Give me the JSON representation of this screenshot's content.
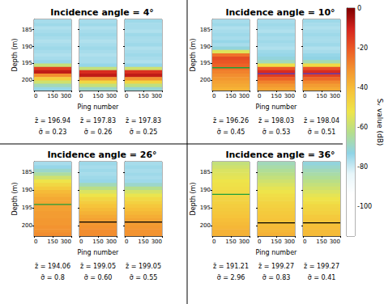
{
  "chart_data": [
    {
      "type": "heatmap",
      "title": "Incidence angle = 4°",
      "x_label": "Ping number",
      "y_label": "Depth (m)",
      "xlim": [
        0,
        300
      ],
      "xticks": [
        0,
        150,
        300
      ],
      "ylim": [
        182,
        203
      ],
      "yticks": [
        185,
        190,
        195,
        200
      ],
      "depth_edges": [
        182,
        183,
        184,
        185,
        186,
        187,
        188,
        189,
        190,
        191,
        192,
        193,
        194,
        195,
        196,
        197,
        198,
        199,
        200,
        201,
        202,
        203
      ],
      "stat_names": [
        "z̄ = ",
        "σ̄ = "
      ],
      "echograms": [
        {
          "sv": [
            -76,
            -75,
            -77,
            -76,
            -75,
            -76,
            -77,
            -76,
            -75,
            -76,
            -77,
            -76,
            -74,
            -60,
            -15,
            -8,
            -30,
            -45,
            -58,
            -68,
            -74
          ],
          "z_mean": 196.94,
          "sigma": 0.23
        },
        {
          "sv": [
            -76,
            -75,
            -77,
            -76,
            -75,
            -76,
            -77,
            -76,
            -75,
            -76,
            -77,
            -76,
            -76,
            -74,
            -60,
            -12,
            -8,
            -32,
            -48,
            -60,
            -70
          ],
          "z_mean": 197.83,
          "sigma": 0.26
        },
        {
          "sv": [
            -75,
            -76,
            -76,
            -77,
            -75,
            -76,
            -76,
            -75,
            -77,
            -76,
            -75,
            -76,
            -77,
            -74,
            -58,
            -13,
            -8,
            -31,
            -47,
            -61,
            -71
          ],
          "z_mean": 197.83,
          "sigma": 0.25
        }
      ]
    },
    {
      "type": "heatmap",
      "title": "Incidence angle = 10°",
      "x_label": "Ping number",
      "y_label": "Depth (m)",
      "xlim": [
        0,
        300
      ],
      "xticks": [
        0,
        150,
        300
      ],
      "ylim": [
        182,
        203
      ],
      "yticks": [
        185,
        190,
        195,
        200
      ],
      "depth_edges": [
        182,
        183,
        184,
        185,
        186,
        187,
        188,
        189,
        190,
        191,
        192,
        193,
        194,
        195,
        196,
        197,
        198,
        199,
        200,
        201,
        202,
        203
      ],
      "stat_names": [
        "z̄ = ",
        "σ̄ = "
      ],
      "echograms": [
        {
          "sv": [
            -76,
            -75,
            -77,
            -76,
            -75,
            -76,
            -74,
            -76,
            -72,
            -55,
            -25,
            -18,
            -20,
            -22,
            -25,
            -28,
            -30,
            -32,
            -34,
            -36,
            -38
          ],
          "z_mean": 196.26,
          "sigma": 0.45,
          "color": "#1f9e3a"
        },
        {
          "sv": [
            -76,
            -75,
            -76,
            -77,
            -75,
            -76,
            -75,
            -76,
            -77,
            -75,
            -74,
            -72,
            -68,
            -50,
            -20,
            -12,
            -15,
            -22,
            -28,
            -32,
            -35
          ],
          "z_mean": 198.03,
          "sigma": 0.53,
          "color": "#4b3fc8"
        },
        {
          "sv": [
            -75,
            -76,
            -77,
            -76,
            -75,
            -76,
            -76,
            -75,
            -77,
            -76,
            -74,
            -73,
            -67,
            -49,
            -19,
            -12,
            -16,
            -23,
            -29,
            -33,
            -36
          ],
          "z_mean": 198.04,
          "sigma": 0.51,
          "color": "#4b3fc8"
        }
      ]
    },
    {
      "type": "heatmap",
      "title": "Incidence angle = 26°",
      "x_label": "Ping number",
      "y_label": "Depth (m)",
      "xlim": [
        0,
        300
      ],
      "xticks": [
        0,
        150,
        300
      ],
      "ylim": [
        182,
        203
      ],
      "yticks": [
        185,
        190,
        195,
        200
      ],
      "depth_edges": [
        182,
        183,
        184,
        185,
        186,
        187,
        188,
        189,
        190,
        191,
        192,
        193,
        194,
        195,
        196,
        197,
        198,
        199,
        200,
        201,
        202,
        203
      ],
      "stat_names": [
        "z̄ = ",
        "σ̄ = "
      ],
      "echograms": [
        {
          "sv": [
            -76,
            -74,
            -70,
            -65,
            -58,
            -52,
            -48,
            -44,
            -40,
            -38,
            -36,
            -35,
            -34,
            -34,
            -33,
            -33,
            -32,
            -32,
            -31,
            -31,
            -30
          ],
          "z_mean": 194.06,
          "sigma": 0.8,
          "color": "#1f9e3a"
        },
        {
          "sv": [
            -75,
            -76,
            -75,
            -76,
            -75,
            -74,
            -68,
            -62,
            -56,
            -52,
            -48,
            -45,
            -42,
            -40,
            -38,
            -36,
            -34,
            -32,
            -31,
            -30,
            -30
          ],
          "z_mean": 199.05,
          "sigma": {
            "value": 0.6,
            "label": "0.60"
          },
          "color": "#000000"
        },
        {
          "sv": [
            -76,
            -75,
            -76,
            -75,
            -76,
            -75,
            -70,
            -63,
            -57,
            -53,
            -49,
            -46,
            -43,
            -41,
            -39,
            -37,
            -35,
            -33,
            -32,
            -31,
            -31
          ],
          "z_mean": 199.05,
          "sigma": 0.55,
          "color": "#000000"
        }
      ]
    },
    {
      "type": "heatmap",
      "title": "Incidence angle = 36°",
      "x_label": "Ping number",
      "y_label": "Depth (m)",
      "xlim": [
        0,
        300
      ],
      "xticks": [
        0,
        150,
        300
      ],
      "ylim": [
        182,
        203
      ],
      "yticks": [
        185,
        190,
        195,
        200
      ],
      "depth_edges": [
        182,
        183,
        184,
        185,
        186,
        187,
        188,
        189,
        190,
        191,
        192,
        193,
        194,
        195,
        196,
        197,
        198,
        199,
        200,
        201,
        202,
        203
      ],
      "stat_names": [
        "z̄ = ",
        "σ̄ = "
      ],
      "echograms": [
        {
          "sv": [
            -60,
            -58,
            -56,
            -55,
            -54,
            -52,
            -51,
            -50,
            -49,
            -48,
            -47,
            -46,
            -45,
            -44,
            -43,
            -42,
            -41,
            -40,
            -39,
            -38,
            -38
          ],
          "z_mean": 191.21,
          "sigma": 2.96,
          "color": "#1f9e3a"
        },
        {
          "sv": [
            -68,
            -66,
            -64,
            -62,
            -60,
            -58,
            -56,
            -54,
            -52,
            -50,
            -49,
            -47,
            -46,
            -45,
            -44,
            -43,
            -42,
            -41,
            -40,
            -39,
            -38
          ],
          "z_mean": 199.27,
          "sigma": 0.83,
          "color": "#000000"
        },
        {
          "sv": [
            -72,
            -70,
            -68,
            -66,
            -64,
            -62,
            -60,
            -58,
            -56,
            -54,
            -52,
            -50,
            -48,
            -47,
            -46,
            -44,
            -43,
            -42,
            -41,
            -40,
            -40
          ],
          "z_mean": 199.27,
          "sigma": 0.41,
          "color": "#000000"
        }
      ]
    },
    {
      "type": "colorbar",
      "y_label": "Sᵥ value (dB)",
      "ylim": [
        -115,
        0
      ],
      "yticks": [
        -100,
        -80,
        -60,
        -40,
        -20,
        0
      ],
      "colors": [
        "#ffffff",
        "#ffffff",
        "#ffffff",
        "#e8f6fa",
        "#8fd3e6",
        "#b5de8c",
        "#eee54a",
        "#f6c33a",
        "#f39530",
        "#ec5b26",
        "#d4241e",
        "#7f0000"
      ]
    }
  ]
}
